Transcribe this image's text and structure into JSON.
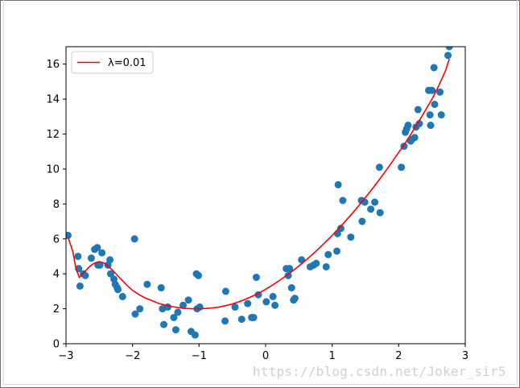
{
  "chart_data": {
    "type": "scatter",
    "xlim": [
      -3,
      3
    ],
    "ylim": [
      0,
      17
    ],
    "xticks": [
      -3,
      -2,
      -1,
      0,
      1,
      2,
      3
    ],
    "yticks": [
      0,
      2,
      4,
      6,
      8,
      10,
      12,
      14,
      16
    ],
    "grid": false,
    "legend": {
      "placement": "top-left",
      "entries": [
        {
          "label": "λ=0.01",
          "color": "#ff0000",
          "style": "line"
        }
      ]
    },
    "colors": {
      "points": "#1f77b4",
      "fit_line": "#ff0000"
    },
    "points": {
      "x": [
        -2.97,
        -2.82,
        -2.81,
        -2.79,
        -2.74,
        -2.71,
        -2.62,
        -2.57,
        -2.53,
        -2.52,
        -2.49,
        -2.46,
        -2.37,
        -2.34,
        -2.33,
        -2.28,
        -2.26,
        -2.23,
        -2.22,
        -2.15,
        -1.97,
        -1.96,
        -1.89,
        -1.78,
        -1.57,
        -1.55,
        -1.53,
        -1.47,
        -1.38,
        -1.35,
        -1.32,
        -1.24,
        -1.16,
        -1.12,
        -1.06,
        -1.04,
        -1.03,
        -1.01,
        -0.99,
        -0.61,
        -0.6,
        -0.46,
        -0.36,
        -0.27,
        -0.21,
        -0.18,
        -0.14,
        -0.11,
        0.01,
        0.11,
        0.14,
        0.31,
        0.34,
        0.36,
        0.39,
        0.42,
        0.44,
        0.54,
        0.67,
        0.72,
        0.76,
        0.91,
        0.94,
        1.07,
        1.08,
        1.09,
        1.13,
        1.16,
        1.28,
        1.44,
        1.45,
        1.49,
        1.58,
        1.64,
        1.71,
        1.72,
        2.04,
        2.08,
        2.1,
        2.12,
        2.14,
        2.18,
        2.2,
        2.24,
        2.26,
        2.29,
        2.31,
        2.45,
        2.47,
        2.48,
        2.5,
        2.53,
        2.54,
        2.62,
        2.64,
        2.74,
        2.76
      ],
      "y": [
        6.2,
        5.0,
        4.3,
        3.3,
        4.0,
        3.9,
        4.9,
        5.4,
        5.5,
        4.5,
        4.5,
        5.2,
        4.5,
        4.8,
        4.0,
        3.7,
        3.4,
        3.2,
        3.1,
        2.7,
        6.0,
        1.7,
        2.0,
        3.4,
        3.2,
        2.0,
        1.1,
        2.1,
        1.5,
        0.8,
        1.8,
        2.2,
        2.5,
        0.7,
        0.5,
        4.0,
        2.0,
        3.9,
        2.1,
        1.3,
        3.0,
        2.1,
        1.4,
        2.3,
        1.5,
        1.5,
        3.8,
        2.8,
        2.4,
        2.7,
        2.2,
        4.3,
        3.9,
        4.3,
        3.2,
        2.5,
        2.6,
        4.8,
        4.4,
        4.5,
        4.6,
        4.4,
        5.1,
        5.3,
        6.3,
        9.1,
        6.6,
        8.2,
        6.1,
        8.2,
        7.0,
        8.1,
        7.7,
        8.1,
        10.1,
        7.5,
        10.1,
        11.3,
        12.1,
        12.3,
        12.5,
        11.6,
        11.7,
        11.8,
        12.4,
        13.4,
        12.6,
        14.5,
        13.1,
        12.5,
        14.5,
        15.8,
        13.7,
        14.4,
        13.1,
        16.5,
        17.0
      ]
    },
    "fit_line": {
      "name": "λ=0.01",
      "x": [
        -2.97,
        -2.9,
        -2.85,
        -2.8,
        -2.75,
        -2.7,
        -2.65,
        -2.6,
        -2.55,
        -2.5,
        -2.45,
        -2.4,
        -2.3,
        -2.2,
        -2.1,
        -2.0,
        -1.9,
        -1.8,
        -1.7,
        -1.6,
        -1.5,
        -1.4,
        -1.3,
        -1.2,
        -1.1,
        -1.0,
        -0.9,
        -0.8,
        -0.7,
        -0.6,
        -0.5,
        -0.4,
        -0.3,
        -0.2,
        -0.1,
        0.0,
        0.1,
        0.2,
        0.3,
        0.4,
        0.5,
        0.6,
        0.7,
        0.8,
        0.9,
        1.0,
        1.1,
        1.2,
        1.3,
        1.4,
        1.5,
        1.6,
        1.7,
        1.8,
        1.9,
        2.0,
        2.1,
        2.2,
        2.3,
        2.4,
        2.5,
        2.6,
        2.7,
        2.76
      ],
      "y": [
        6.1,
        5.3,
        4.3,
        3.8,
        4.0,
        4.2,
        4.4,
        4.55,
        4.65,
        4.7,
        4.65,
        4.55,
        4.2,
        3.8,
        3.4,
        3.05,
        2.8,
        2.6,
        2.45,
        2.3,
        2.2,
        2.12,
        2.06,
        2.02,
        2.0,
        2.0,
        2.02,
        2.05,
        2.1,
        2.18,
        2.28,
        2.4,
        2.55,
        2.72,
        2.9,
        3.12,
        3.35,
        3.6,
        3.87,
        4.15,
        4.45,
        4.77,
        5.1,
        5.45,
        5.82,
        6.2,
        6.6,
        7.02,
        7.45,
        7.9,
        8.37,
        8.85,
        9.35,
        9.87,
        10.4,
        10.95,
        11.5,
        12.1,
        12.7,
        13.35,
        14.0,
        14.75,
        15.6,
        16.3
      ]
    }
  },
  "watermark": "https://blog.csdn.net/Joker_sir5"
}
